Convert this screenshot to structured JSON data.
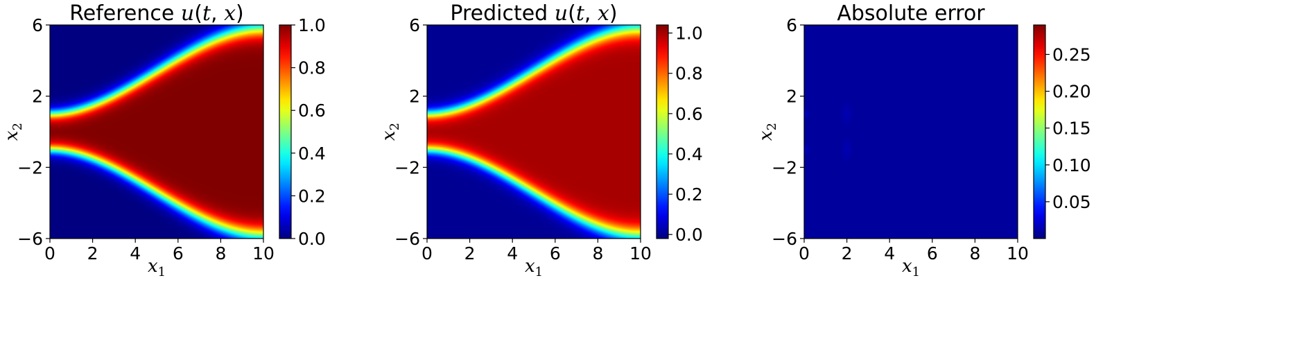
{
  "chart_data": [
    {
      "type": "heatmap",
      "title_parts": [
        "Reference ",
        "u",
        "(",
        "t",
        ", ",
        "x",
        ")"
      ],
      "xlabel_parts": [
        "x",
        "1"
      ],
      "ylabel_parts": [
        "x",
        "2"
      ],
      "xlim": [
        0,
        10
      ],
      "ylim": [
        -6,
        6
      ],
      "x_ticks": [
        0,
        2,
        4,
        6,
        8,
        10
      ],
      "x_tick_labels": [
        "0",
        "2",
        "4",
        "6",
        "8",
        "10"
      ],
      "y_ticks": [
        6,
        2,
        -2,
        -6
      ],
      "y_tick_labels": [
        "6",
        "2",
        "−2",
        "−6"
      ],
      "colormap": "jet",
      "color_range": [
        0.0,
        1.0
      ],
      "colorbar_ticks": [
        0.0,
        0.2,
        0.4,
        0.6,
        0.8,
        1.0
      ],
      "colorbar_tick_labels": [
        "0.0",
        "0.2",
        "0.4",
        "0.6",
        "0.8",
        "1.0"
      ],
      "field": "plateau",
      "field_params": {
        "band_inner_start": 1.0,
        "band_outer_end": 5.8,
        "band_width": 0.6,
        "peak": 1.0
      }
    },
    {
      "type": "heatmap",
      "title_parts": [
        "Predicted ",
        "u",
        "(",
        "t",
        ", ",
        "x",
        ")"
      ],
      "xlabel_parts": [
        "x",
        "1"
      ],
      "ylabel_parts": [
        "x",
        "2"
      ],
      "xlim": [
        0,
        10
      ],
      "ylim": [
        -6,
        6
      ],
      "x_ticks": [
        0,
        2,
        4,
        6,
        8,
        10
      ],
      "x_tick_labels": [
        "0",
        "2",
        "4",
        "6",
        "8",
        "10"
      ],
      "y_ticks": [
        6,
        2,
        -2,
        -6
      ],
      "y_tick_labels": [
        "6",
        "2",
        "−2",
        "−6"
      ],
      "colormap": "jet",
      "color_range": [
        -0.02,
        1.04
      ],
      "colorbar_ticks": [
        0.0,
        0.2,
        0.4,
        0.6,
        0.8,
        1.0
      ],
      "colorbar_tick_labels": [
        "0.0",
        "0.2",
        "0.4",
        "0.6",
        "0.8",
        "1.0"
      ],
      "field": "plateau",
      "field_params": {
        "band_inner_start": 1.0,
        "band_outer_end": 5.8,
        "band_width": 0.6,
        "peak": 1.0
      }
    },
    {
      "type": "heatmap",
      "title_parts": [
        "Absolute error"
      ],
      "xlabel_parts": [
        "x",
        "1"
      ],
      "ylabel_parts": [
        "x",
        "2"
      ],
      "xlim": [
        0,
        10
      ],
      "ylim": [
        -6,
        6
      ],
      "x_ticks": [
        0,
        2,
        4,
        6,
        8,
        10
      ],
      "x_tick_labels": [
        "0",
        "2",
        "4",
        "6",
        "8",
        "10"
      ],
      "y_ticks": [
        6,
        2,
        -2,
        -6
      ],
      "y_tick_labels": [
        "6",
        "2",
        "−2",
        "−6"
      ],
      "colormap": "jet",
      "color_range": [
        0.0,
        0.29
      ],
      "colorbar_ticks": [
        0.05,
        0.1,
        0.15,
        0.2,
        0.25
      ],
      "colorbar_tick_labels": [
        "0.05",
        "0.10",
        "0.15",
        "0.20",
        "0.25"
      ],
      "field": "error",
      "field_params": {
        "background": 0.008
      }
    }
  ]
}
